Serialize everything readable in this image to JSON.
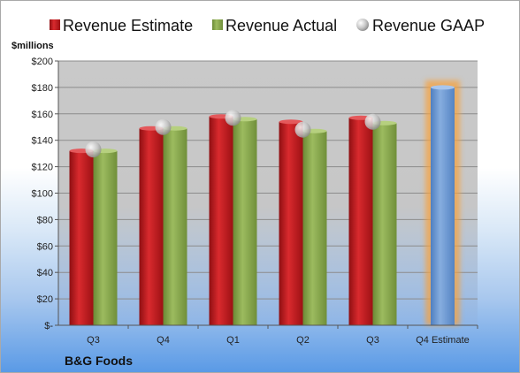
{
  "company": "B&G Foods",
  "unit_label": "$millions",
  "colors": {
    "estimate": "#c0151a",
    "actual": "#8aaa4e",
    "gaap": "#c8c8c8",
    "future_estimate": "#6f9bd6",
    "glow": "#f6a240"
  },
  "legend": [
    {
      "label": "Revenue Estimate",
      "icon": "red-square-marker"
    },
    {
      "label": "Revenue Actual",
      "icon": "green-square-marker"
    },
    {
      "label": "Revenue GAAP",
      "icon": "gray-sphere-marker"
    }
  ],
  "chart_data": {
    "type": "bar",
    "categories": [
      "Q3",
      "Q4",
      "Q1",
      "Q2",
      "Q3",
      "Q4 Estimate"
    ],
    "series": [
      {
        "name": "Revenue Estimate",
        "values": [
          132,
          149,
          158,
          154,
          157,
          180
        ]
      },
      {
        "name": "Revenue Actual",
        "values": [
          132,
          149,
          156,
          147,
          153,
          null
        ]
      },
      {
        "name": "Revenue GAAP",
        "values": [
          133,
          150,
          157,
          148,
          154,
          null
        ]
      }
    ],
    "ylabel": "$millions",
    "ylim": [
      0,
      200
    ],
    "yticks": [
      "$-",
      "$20",
      "$40",
      "$60",
      "$80",
      "$100",
      "$120",
      "$140",
      "$160",
      "$180",
      "$200"
    ],
    "highlighted_category": "Q4 Estimate",
    "grid": true,
    "legend_position": "top"
  }
}
